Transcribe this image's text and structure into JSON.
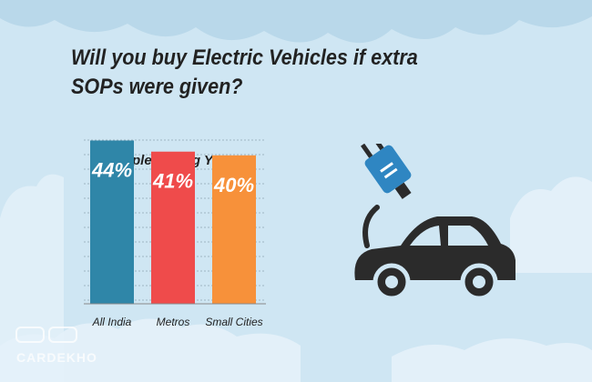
{
  "title": "Will you buy Electric Vehicles if extra SOPs were given?",
  "colors": {
    "background": "#cfe6f3",
    "cloud": "#ffffff",
    "cloud_top": "#b9d8ea",
    "grid": "#9fb5c3",
    "car": "#2b2b2b",
    "plug": "#2f86c2"
  },
  "icons": [
    "electric-car-icon",
    "plug-icon"
  ],
  "watermark_text": "CARDEKHO",
  "chart_data": {
    "type": "bar",
    "subtitle": "% People Saying Yes",
    "categories": [
      "All India",
      "Metros",
      "Small Cities"
    ],
    "values": [
      44,
      41,
      40
    ],
    "value_labels": [
      "44%",
      "41%",
      "40%"
    ],
    "colors": [
      "#2f86a8",
      "#ef4b4b",
      "#f7913a"
    ],
    "ylim": [
      0,
      50
    ],
    "grid": true,
    "legend": "none"
  }
}
